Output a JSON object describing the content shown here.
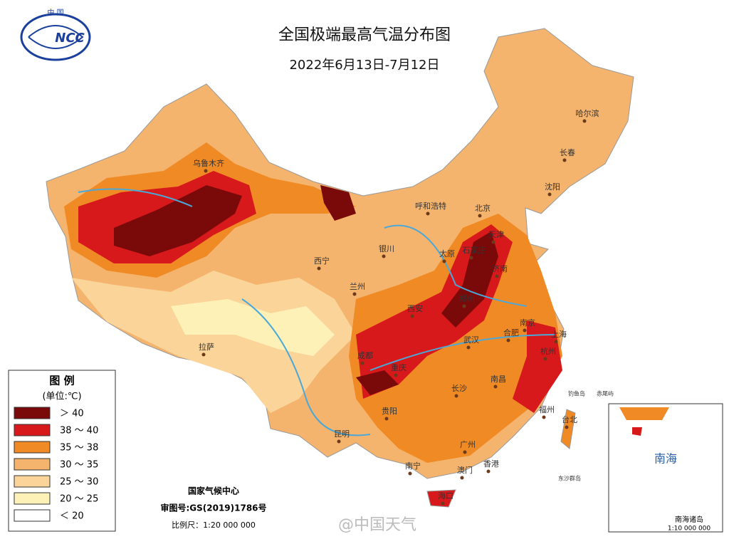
{
  "header": {
    "logo_top": "中 国",
    "logo_text": "NCC",
    "title": "全国极端最高气温分布图",
    "subtitle": "2022年6月13日-7月12日"
  },
  "legend": {
    "title": "图 例",
    "unit": "(单位:℃)",
    "items": [
      {
        "label": "＞ 40",
        "color": "#7a0a0a"
      },
      {
        "label": "38 ～ 40",
        "color": "#d7191c"
      },
      {
        "label": "35 ～ 38",
        "color": "#f08a24"
      },
      {
        "label": "30 ～ 35",
        "color": "#f5b46e"
      },
      {
        "label": "25 ～ 30",
        "color": "#fbd49a"
      },
      {
        "label": "20 ～ 25",
        "color": "#fdf1b8"
      },
      {
        "label": "＜ 20",
        "color": "#ffffff"
      }
    ]
  },
  "cities": [
    "乌鲁木齐",
    "哈尔滨",
    "长春",
    "沈阳",
    "呼和浩特",
    "北京",
    "天津",
    "石家庄",
    "太原",
    "银川",
    "西宁",
    "兰州",
    "济南",
    "郑州",
    "西安",
    "南京",
    "合肥",
    "上海",
    "武汉",
    "杭州",
    "成都",
    "重庆",
    "拉萨",
    "长沙",
    "南昌",
    "贵阳",
    "福州",
    "台北",
    "昆明",
    "广州",
    "南宁",
    "香港",
    "澳门",
    "海口"
  ],
  "islands": [
    "钓鱼岛",
    "赤尾屿",
    "东沙群岛"
  ],
  "footer": {
    "org": "国家气候中心",
    "approval": "审图号:GS(2019)1786号",
    "scale": "比例尺：1:20 000 000"
  },
  "inset": {
    "sea": "南海",
    "title": "南海诸岛",
    "scale": "1:10 000 000"
  },
  "watermark": "@中国天气"
}
